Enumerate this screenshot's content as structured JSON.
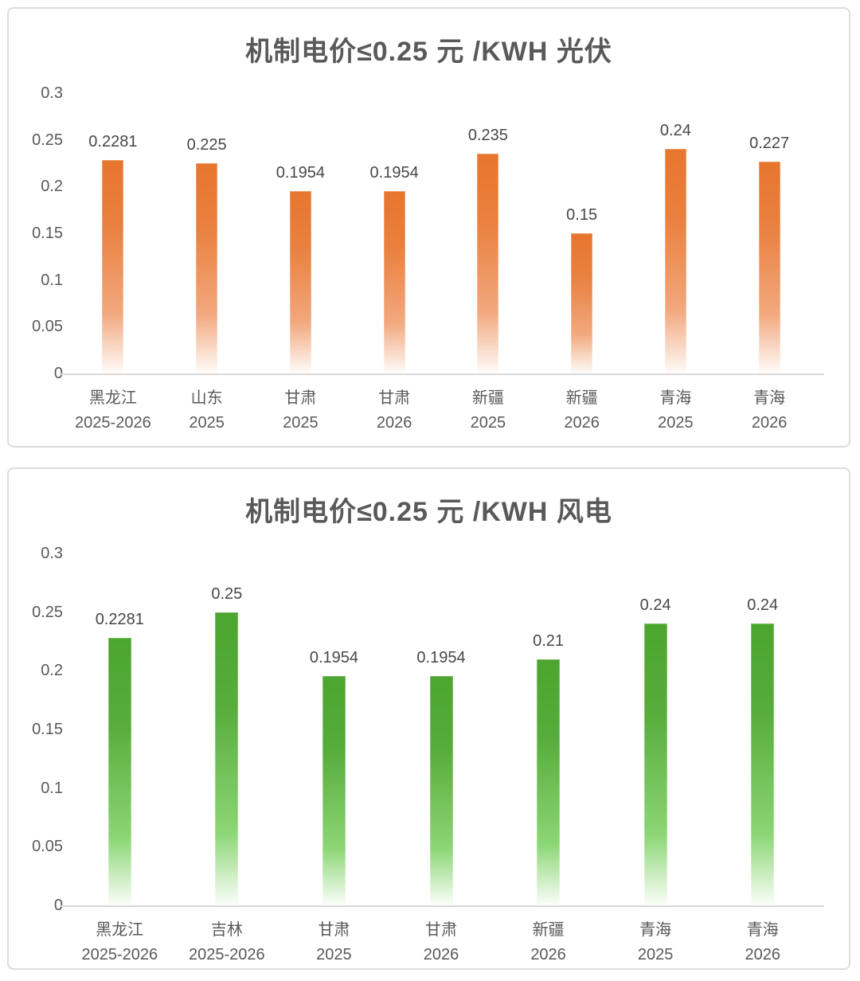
{
  "page": {
    "background": "#ffffff",
    "panel_border_color": "#dcdcdc"
  },
  "chart_data": [
    {
      "id": "solar-pv",
      "type": "bar",
      "title": "机制电价≤0.25 元 /KWH 光伏",
      "categories": [
        {
          "region": "黑龙江",
          "period": "2025-2026"
        },
        {
          "region": "山东",
          "period": "2025"
        },
        {
          "region": "甘肃",
          "period": "2025"
        },
        {
          "region": "甘肃",
          "period": "2026"
        },
        {
          "region": "新疆",
          "period": "2025"
        },
        {
          "region": "新疆",
          "period": "2026"
        },
        {
          "region": "青海",
          "period": "2025"
        },
        {
          "region": "青海",
          "period": "2026"
        }
      ],
      "values": [
        0.2281,
        0.225,
        0.1954,
        0.1954,
        0.235,
        0.15,
        0.24,
        0.227
      ],
      "value_labels": [
        "0.2281",
        "0.225",
        "0.1954",
        "0.1954",
        "0.235",
        "0.15",
        "0.24",
        "0.227"
      ],
      "xlabel": "",
      "ylabel": "",
      "ylim": [
        0,
        0.3
      ],
      "yticks": [
        {
          "v": 0,
          "label": "0"
        },
        {
          "v": 0.05,
          "label": "0.05"
        },
        {
          "v": 0.1,
          "label": "0.1"
        },
        {
          "v": 0.15,
          "label": "0.15"
        },
        {
          "v": 0.2,
          "label": "0.2"
        },
        {
          "v": 0.25,
          "label": "0.25"
        },
        {
          "v": 0.3,
          "label": "0.3"
        }
      ],
      "grid": false,
      "legend": "none",
      "colors": {
        "bar_top": "#e7752e",
        "bar_gradient": [
          "#e7752e 0%",
          "#ea8140 32%",
          "#f2a87e 72%",
          "#fefcfa 100%"
        ],
        "title": "#595959",
        "axis_labels": "#595959",
        "value_labels": "#474747",
        "baseline": "#d9d9d9"
      }
    },
    {
      "id": "wind",
      "type": "bar",
      "title": "机制电价≤0.25 元 /KWH 风电",
      "categories": [
        {
          "region": "黑龙江",
          "period": "2025-2026"
        },
        {
          "region": "吉林",
          "period": "2025-2026"
        },
        {
          "region": "甘肃",
          "period": "2025"
        },
        {
          "region": "甘肃",
          "period": "2026"
        },
        {
          "region": "新疆",
          "period": "2026"
        },
        {
          "region": "青海",
          "period": "2025"
        },
        {
          "region": "青海",
          "period": "2026"
        }
      ],
      "values": [
        0.2281,
        0.25,
        0.1954,
        0.1954,
        0.21,
        0.24,
        0.24
      ],
      "value_labels": [
        "0.2281",
        "0.25",
        "0.1954",
        "0.1954",
        "0.21",
        "0.24",
        "0.24"
      ],
      "xlabel": "",
      "ylabel": "",
      "ylim": [
        0,
        0.3
      ],
      "yticks": [
        {
          "v": 0,
          "label": "0"
        },
        {
          "v": 0.05,
          "label": "0.05"
        },
        {
          "v": 0.1,
          "label": "0.1"
        },
        {
          "v": 0.15,
          "label": "0.15"
        },
        {
          "v": 0.2,
          "label": "0.2"
        },
        {
          "v": 0.25,
          "label": "0.25"
        },
        {
          "v": 0.3,
          "label": "0.3"
        }
      ],
      "grid": false,
      "legend": "none",
      "colors": {
        "bar_top": "#4ca52f",
        "bar_gradient": [
          "#4ca52f 0%",
          "#57ac3b 32%",
          "#8cd675 75%",
          "#fbfefa 100%"
        ],
        "title": "#595959",
        "axis_labels": "#595959",
        "value_labels": "#474747",
        "baseline": "#d9d9d9"
      }
    }
  ]
}
